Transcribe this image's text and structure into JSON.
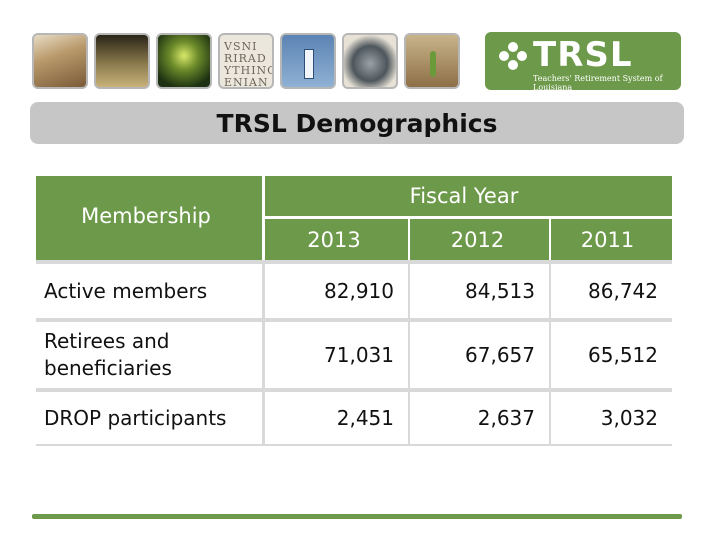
{
  "banner": {
    "photos": [
      {
        "name": "capitol-photo",
        "icon": "building-column-image"
      },
      {
        "name": "library-photo",
        "icon": "reading-room-image"
      },
      {
        "name": "open-book-photo",
        "icon": "glowing-book-image"
      },
      {
        "name": "stone-inscription-photo",
        "icon": "engraved-letters-image"
      },
      {
        "name": "door-photo",
        "icon": "open-door-image"
      },
      {
        "name": "globe-photo",
        "icon": "globe-image"
      },
      {
        "name": "sprout-photo",
        "icon": "seedling-image"
      }
    ],
    "inscription_lines": [
      "VSNI",
      "RIRAD",
      "YTHING",
      "ENIAN"
    ],
    "logo": {
      "brand": "TRSL",
      "tagline": "Teachers' Retirement System of Louisiana",
      "color": "#6d9a4a"
    }
  },
  "title": "TRSL Demographics",
  "table": {
    "row_header": "Membership",
    "group_header": "Fiscal Year",
    "years": [
      "2013",
      "2012",
      "2011"
    ],
    "rows": [
      {
        "label": "Active members",
        "values": [
          "82,910",
          "84,513",
          "86,742"
        ]
      },
      {
        "label": "Retirees and beneficiaries",
        "values": [
          "71,031",
          "67,657",
          "65,512"
        ]
      },
      {
        "label": "DROP participants",
        "values": [
          "2,451",
          "2,637",
          "3,032"
        ]
      }
    ],
    "header_color": "#6d9a4a",
    "divider_color": "#d9d9d9"
  },
  "footer": {
    "accent_color": "#6d9a4a"
  }
}
